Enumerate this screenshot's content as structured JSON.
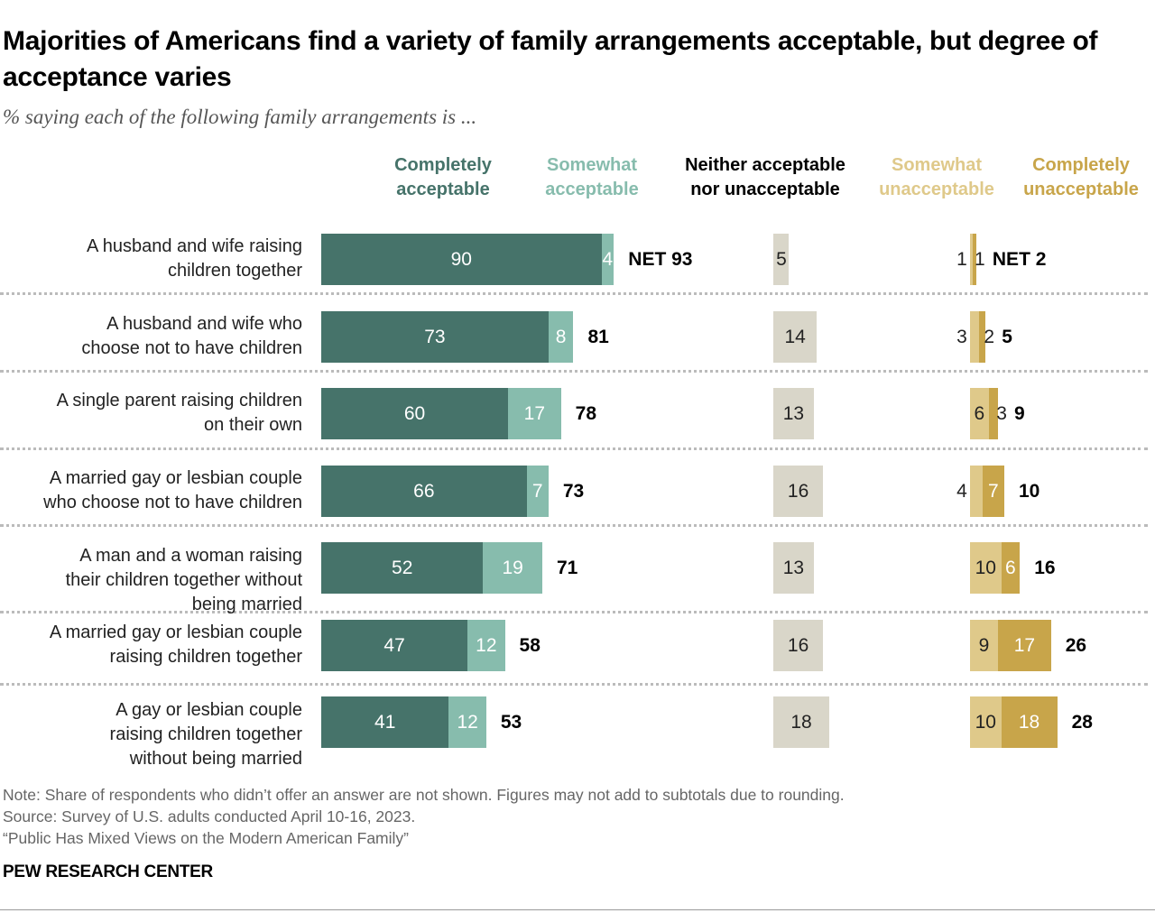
{
  "chart_data": {
    "type": "bar",
    "orientation": "horizontal-diverging-stacked",
    "title": "Majorities of Americans find a variety of family arrangements acceptable, but degree of acceptance varies",
    "subtitle": "% saying each of the following family arrangements is ...",
    "legend": [
      {
        "name": "Completely acceptable",
        "color": "#46736a"
      },
      {
        "name": "Somewhat acceptable",
        "color": "#87bcad"
      },
      {
        "name": "Neither acceptable nor unacceptable",
        "color": "#d9d6c9"
      },
      {
        "name": "Somewhat unacceptable",
        "color": "#dfc98a"
      },
      {
        "name": "Completely unacceptable",
        "color": "#c8a54a"
      }
    ],
    "headers": [
      {
        "lines": [
          "Completely",
          "acceptable"
        ],
        "color": "#46736a"
      },
      {
        "lines": [
          "Somewhat",
          "acceptable"
        ],
        "color": "#87bcad"
      },
      {
        "lines": [
          "Neither acceptable",
          "nor unacceptable"
        ],
        "color": "#000000"
      },
      {
        "lines": [
          "Somewhat",
          "unacceptable"
        ],
        "color": "#dfc98a"
      },
      {
        "lines": [
          "Completely",
          "unacceptable"
        ],
        "color": "#c8a54a"
      }
    ],
    "categories": [
      [
        "A husband and wife raising",
        "children together"
      ],
      [
        "A husband and wife who",
        "choose not to have children"
      ],
      [
        "A single parent raising children",
        "on their own"
      ],
      [
        "A married gay or lesbian couple",
        "who choose not to have children"
      ],
      [
        "A man and a woman raising",
        "their children together without",
        "being married"
      ],
      [
        "A married gay or lesbian couple",
        "raising children together"
      ],
      [
        "A gay or lesbian couple",
        "raising children together",
        "without being married"
      ]
    ],
    "completely_acceptable": [
      90,
      73,
      60,
      66,
      52,
      47,
      41
    ],
    "somewhat_acceptable": [
      4,
      8,
      17,
      7,
      19,
      12,
      12
    ],
    "net_acceptable": [
      "NET 93",
      "81",
      "78",
      "73",
      "71",
      "58",
      "53"
    ],
    "neither": [
      5,
      14,
      13,
      16,
      13,
      16,
      18
    ],
    "somewhat_unacceptable": [
      1,
      3,
      6,
      4,
      10,
      9,
      10
    ],
    "completely_unacceptable": [
      1,
      2,
      3,
      7,
      6,
      17,
      18
    ],
    "net_unacceptable": [
      "NET 2",
      "5",
      "9",
      "10",
      "16",
      "26",
      "28"
    ]
  },
  "notes": [
    "Note: Share of respondents who didn’t offer an answer are not shown. Figures may not add to subtotals due to rounding.",
    "Source: Survey of U.S. adults conducted April 10-16, 2023.",
    "“Public Has Mixed Views on the Modern American Family”"
  ],
  "brand": "PEW RESEARCH CENTER"
}
